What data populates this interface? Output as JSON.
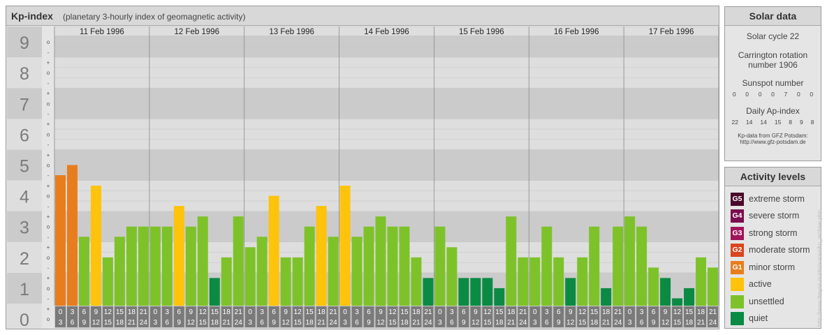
{
  "header": {
    "title": "Kp-index",
    "subtitle": "(planetary 3-hourly index of geomagnetic activity)"
  },
  "chart_data": {
    "type": "bar",
    "title": "Kp-index",
    "subtitle": "(planetary 3-hourly index of geomagnetic activity)",
    "ylim": [
      0,
      9
    ],
    "y_ticks": [
      "0",
      "1",
      "2",
      "3",
      "4",
      "5",
      "6",
      "7",
      "8",
      "9"
    ],
    "y_minor": [
      "o",
      "+",
      "-"
    ],
    "days": [
      "11 Feb 1996",
      "12 Feb 1996",
      "13 Feb 1996",
      "14 Feb 1996",
      "15 Feb 1996",
      "16 Feb 1996",
      "17 Feb 1996"
    ],
    "interval_start": [
      "0",
      "3",
      "6",
      "9",
      "12",
      "15",
      "18",
      "21"
    ],
    "interval_end": [
      "3",
      "6",
      "9",
      "12",
      "15",
      "18",
      "21",
      "24"
    ],
    "values": [
      [
        4.67,
        5.0,
        2.67,
        4.33,
        2.0,
        2.67,
        3.0,
        3.0
      ],
      [
        3.0,
        3.0,
        3.67,
        3.0,
        3.33,
        1.33,
        2.0,
        3.33
      ],
      [
        2.33,
        2.67,
        4.0,
        2.0,
        2.0,
        3.0,
        3.67,
        2.67
      ],
      [
        4.33,
        2.67,
        3.0,
        3.33,
        3.0,
        3.0,
        2.0,
        1.33
      ],
      [
        3.0,
        2.33,
        1.33,
        1.33,
        1.33,
        1.0,
        3.33,
        2.0
      ],
      [
        2.0,
        3.0,
        2.0,
        1.33,
        2.0,
        3.0,
        1.0,
        3.0
      ],
      [
        3.33,
        3.0,
        1.67,
        1.33,
        0.67,
        1.0,
        2.0,
        1.67
      ]
    ],
    "grid": true,
    "legend": "right"
  },
  "solar": {
    "title": "Solar data",
    "cycle": "Solar cycle 22",
    "carrington_1": "Carrington rotation",
    "carrington_2": "number 1906",
    "sunspot_label": "Sunspot number",
    "sunspot_values": [
      "0",
      "0",
      "0",
      "0",
      "7",
      "0",
      "0"
    ],
    "ap_label": "Daily Ap-index",
    "ap_values": [
      "22",
      "14",
      "14",
      "15",
      "8",
      "9",
      "8"
    ],
    "source_1": "Kp-data from GFZ Potsdam:",
    "source_2": "http://www.gfz-potsdam.de"
  },
  "activity": {
    "title": "Activity levels",
    "levels": [
      {
        "code": "G5",
        "label": "extreme storm",
        "color": "#4a0a2a"
      },
      {
        "code": "G4",
        "label": "severe storm",
        "color": "#7a0e4e"
      },
      {
        "code": "G3",
        "label": "strong storm",
        "color": "#a0145a"
      },
      {
        "code": "G2",
        "label": "moderate storm",
        "color": "#d9451e"
      },
      {
        "code": "G1",
        "label": "minor storm",
        "color": "#e87d1e"
      },
      {
        "code": "",
        "label": "active",
        "color": "#fec30a"
      },
      {
        "code": "",
        "label": "unsettled",
        "color": "#7ec22a"
      },
      {
        "code": "",
        "label": "quiet",
        "color": "#0b8a44"
      }
    ]
  },
  "colors": {
    "quiet": "#0b8a44",
    "unsettled": "#7ec22a",
    "active": "#fec30a",
    "g1": "#e87d1e",
    "band_dark": "#cbcbcb",
    "band_light": "#dedede",
    "axis_box": "#7a7a7a"
  },
  "watermark": "http://www.tlreyse.eu/de/aurora/kp_archive.php"
}
